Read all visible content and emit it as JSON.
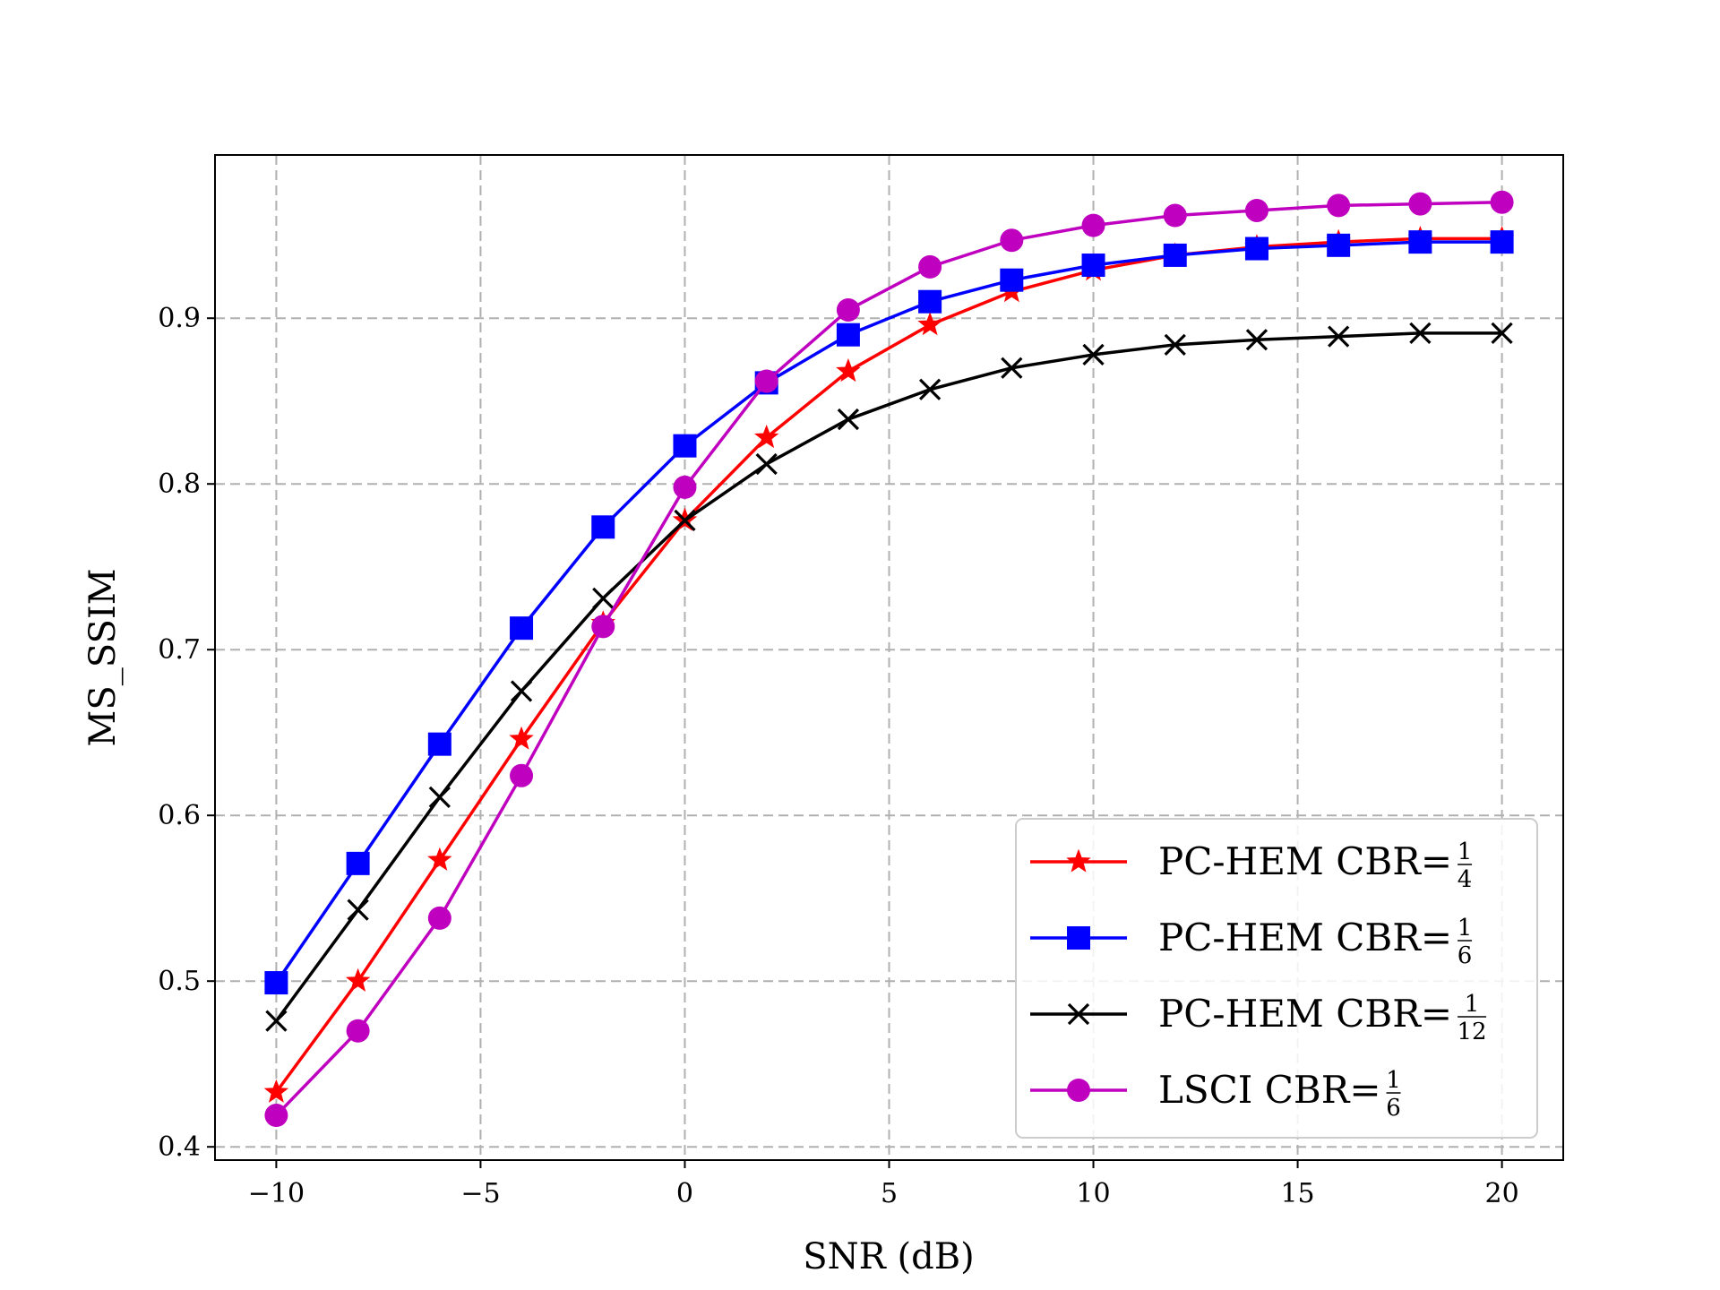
{
  "chart_data": {
    "type": "line",
    "title": "",
    "xlabel": "SNR (dB)",
    "ylabel": "MS_SSIM",
    "xlim": [
      -11.5,
      21.5
    ],
    "ylim": [
      0.392,
      0.9985
    ],
    "xticks": [
      -10,
      -5,
      0,
      5,
      10,
      15,
      20
    ],
    "xtick_labels": [
      "−10",
      "−5",
      "0",
      "5",
      "10",
      "15",
      "20"
    ],
    "yticks": [
      0.4,
      0.5,
      0.6,
      0.7,
      0.8,
      0.9
    ],
    "ytick_labels": [
      "0.4",
      "0.5",
      "0.6",
      "0.7",
      "0.8",
      "0.9"
    ],
    "grid": true,
    "legend_position": "bottom-right",
    "x": [
      -10,
      -8,
      -6,
      -4,
      -2,
      0,
      2,
      4,
      6,
      8,
      10,
      12,
      14,
      16,
      18,
      20
    ],
    "series": [
      {
        "name": "PC-HEM CBR=1/4",
        "label_prefix": "PC-HEM CBR=",
        "frac_num": "1",
        "frac_den": "4",
        "color": "#ff0000",
        "marker": "star",
        "values": [
          0.433,
          0.5,
          0.573,
          0.646,
          0.716,
          0.778,
          0.828,
          0.868,
          0.896,
          0.916,
          0.929,
          0.938,
          0.943,
          0.946,
          0.948,
          0.948
        ]
      },
      {
        "name": "PC-HEM CBR=1/6",
        "label_prefix": "PC-HEM CBR=",
        "frac_num": "1",
        "frac_den": "6",
        "color": "#0000ff",
        "marker": "square",
        "values": [
          0.499,
          0.571,
          0.643,
          0.713,
          0.774,
          0.823,
          0.861,
          0.89,
          0.91,
          0.923,
          0.932,
          0.938,
          0.942,
          0.944,
          0.946,
          0.946
        ]
      },
      {
        "name": "PC-HEM CBR=1/12",
        "label_prefix": "PC-HEM CBR=",
        "frac_num": "1",
        "frac_den": "12",
        "color": "#000000",
        "marker": "x",
        "values": [
          0.476,
          0.543,
          0.611,
          0.675,
          0.731,
          0.778,
          0.812,
          0.839,
          0.857,
          0.87,
          0.878,
          0.884,
          0.887,
          0.889,
          0.891,
          0.891
        ]
      },
      {
        "name": "LSCI CBR=1/6",
        "label_prefix": "LSCI CBR=",
        "frac_num": "1",
        "frac_den": "6",
        "color": "#bf00bf",
        "marker": "circle",
        "values": [
          0.419,
          0.47,
          0.538,
          0.624,
          0.714,
          0.798,
          0.862,
          0.905,
          0.931,
          0.947,
          0.956,
          0.962,
          0.965,
          0.968,
          0.969,
          0.97
        ]
      }
    ]
  }
}
